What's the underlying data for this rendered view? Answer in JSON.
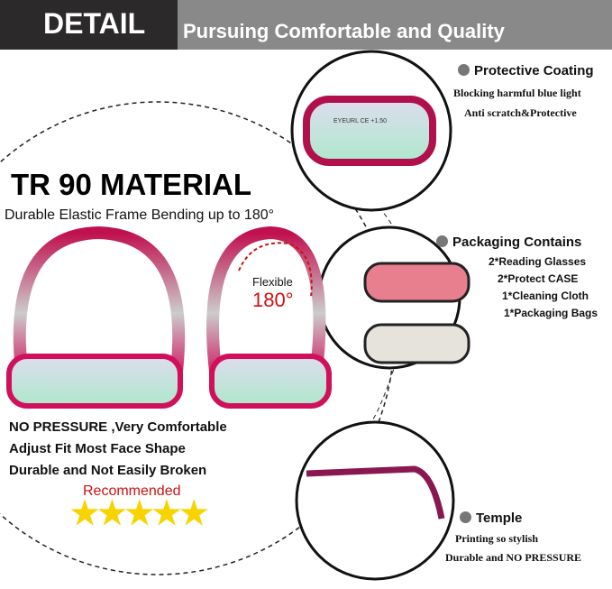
{
  "header": {
    "title": "DETAIL",
    "subtitle": "Pursuing Comfortable and Quality"
  },
  "main": {
    "heading": "TR 90 MATERIAL",
    "subheading": "Durable Elastic Frame Bending up to 180°",
    "flex_label": "Flexible",
    "flex_angle": "180°",
    "features": [
      "NO PRESSURE ,Very Comfortable",
      "Adjust Fit Most Face Shape",
      "Durable and Not Easily Broken"
    ],
    "recommended": "Recommended",
    "rating": 5,
    "lens_print": "EYEURL CE +1.50"
  },
  "details": [
    {
      "title": "Protective Coating",
      "lines": [
        "Blocking harmful blue light",
        "Anti scratch&Protective"
      ]
    },
    {
      "title": "Packaging Contains",
      "lines": [
        "2*Reading Glasses",
        "2*Protect CASE",
        "1*Cleaning Cloth",
        "1*Packaging Bags"
      ]
    },
    {
      "title": "Temple",
      "lines": [
        "Printing so stylish",
        "Durable and NO PRESSURE"
      ]
    }
  ],
  "colors": {
    "accent": "#d0105a",
    "star": "#f7d400",
    "flex": "#d01010"
  }
}
